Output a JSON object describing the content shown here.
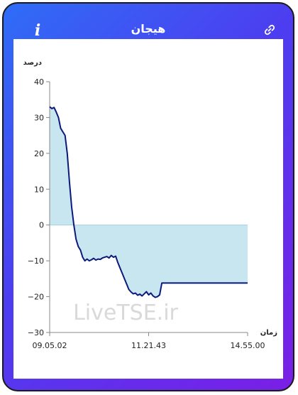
{
  "header": {
    "title": "هیجان",
    "info_icon": "info-icon",
    "link_icon": "link-icon"
  },
  "colors": {
    "gradient_start": "#2f6df6",
    "gradient_end": "#7a1fe6",
    "line": "#0b1a7a",
    "fill": "#c8e6ef"
  },
  "watermark": "LiveTSE.ir",
  "chart_data": {
    "type": "area",
    "ylabel": "درصد",
    "xlabel": "زمان",
    "ylim": [
      -30,
      40
    ],
    "yticks": [
      40,
      30,
      20,
      10,
      0,
      -10,
      -20,
      -30
    ],
    "x_tick_labels": [
      "09.05.02",
      "11.21.43",
      "14.55.00"
    ],
    "grid": false,
    "series": [
      {
        "x": [
          0,
          1,
          2,
          3,
          4,
          5,
          6,
          7,
          8,
          9,
          10,
          11,
          12,
          13,
          14,
          15,
          16,
          17,
          18,
          19,
          20,
          21,
          22,
          23,
          24,
          25,
          26,
          27,
          28,
          29,
          30,
          31,
          32,
          33,
          34,
          35,
          36,
          37,
          38,
          39,
          40,
          41,
          42,
          43,
          44,
          45,
          46,
          47,
          48,
          49,
          50,
          51,
          52,
          53,
          54,
          55,
          56,
          57,
          58,
          59,
          60,
          61,
          62,
          63,
          64,
          65,
          66,
          67,
          68,
          69,
          70,
          71,
          72,
          73,
          74,
          75,
          76,
          77,
          78,
          79,
          80,
          81,
          82,
          83,
          84,
          85,
          86,
          87,
          88,
          89,
          90
        ],
        "y": [
          33,
          32.5,
          32.8,
          31.5,
          30,
          27,
          26,
          25,
          20,
          12,
          5,
          0,
          -4,
          -6,
          -7,
          -9,
          -10,
          -9.5,
          -10,
          -9.7,
          -9.3,
          -9.8,
          -9.5,
          -9.6,
          -9.2,
          -9.0,
          -8.8,
          -9.2,
          -8.5,
          -9.0,
          -8.7,
          -10.5,
          -12,
          -13.5,
          -15,
          -16.5,
          -18,
          -18.7,
          -19.2,
          -19.0,
          -19.6,
          -19.3,
          -19.8,
          -19.2,
          -18.6,
          -19.5,
          -19.0,
          -19.8,
          -20.2,
          -20,
          -19.5,
          -16.2,
          -16.2,
          -16.2,
          -16.2,
          -16.2,
          -16.2,
          -16.2,
          -16.2,
          -16.2,
          -16.2,
          -16.2,
          -16.2,
          -16.2,
          -16.2,
          -16.2,
          -16.2,
          -16.2,
          -16.2,
          -16.2,
          -16.2,
          -16.2,
          -16.2,
          -16.2,
          -16.2,
          -16.2,
          -16.2,
          -16.2,
          -16.2,
          -16.2,
          -16.2,
          -16.2,
          -16.2,
          -16.2,
          -16.2,
          -16.2,
          -16.2,
          -16.2,
          -16.2,
          -16.2,
          -16.2
        ]
      }
    ]
  }
}
